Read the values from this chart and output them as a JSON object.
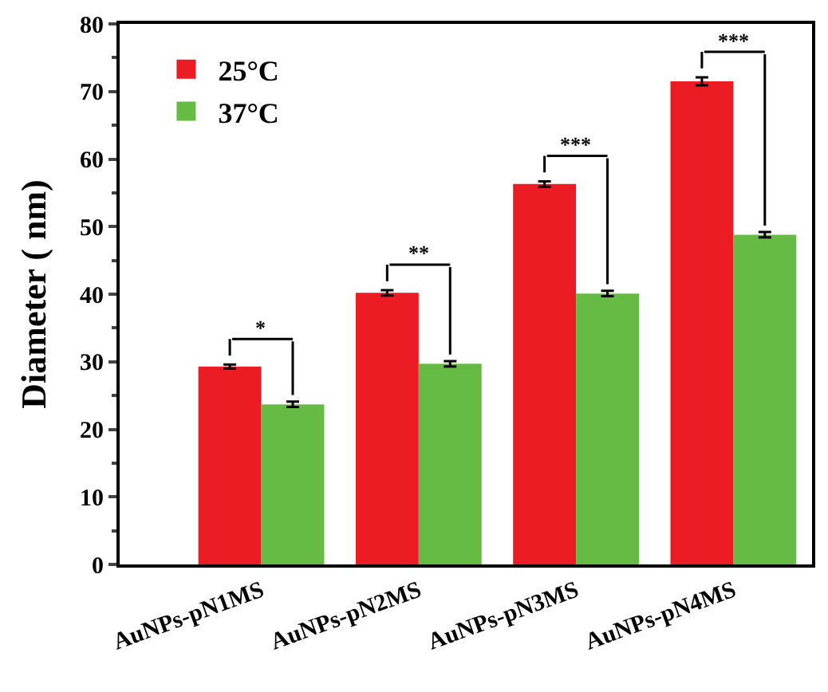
{
  "chart_data": {
    "type": "bar",
    "ylabel": "Diameter ( nm)",
    "categories": [
      "AuNPs-pN1MS",
      "AuNPs-pN2MS",
      "AuNPs-pN3MS",
      "AuNPs-pN4MS"
    ],
    "series": [
      {
        "name": "25°C",
        "color": "#ec1c24",
        "values": [
          29.3,
          40.2,
          56.3,
          71.5
        ],
        "errors": [
          0.3,
          0.4,
          0.4,
          0.6
        ]
      },
      {
        "name": "37°C",
        "color": "#66bb44",
        "values": [
          23.7,
          29.7,
          40.1,
          48.8
        ],
        "errors": [
          0.4,
          0.4,
          0.4,
          0.4
        ]
      }
    ],
    "annotations": [
      "*",
      "**",
      "***",
      "***"
    ],
    "ylim": [
      0,
      80
    ],
    "yticks": [
      0,
      10,
      20,
      30,
      40,
      50,
      60,
      70,
      80
    ],
    "legend": "top left"
  }
}
